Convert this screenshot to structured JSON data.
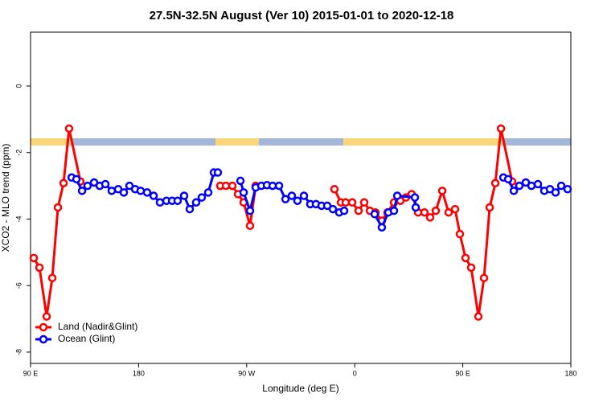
{
  "chart_data": {
    "type": "line",
    "title": "27.5N-32.5N August (Ver 10)   2015-01-01 to 2020-12-18",
    "x_label": "Longitude (deg E)",
    "y_label": "XCO2 - MLO trend (ppm)",
    "xlim": [
      90,
      540
    ],
    "ylim": [
      -8.34,
      1.62
    ],
    "xticks": [
      {
        "value": 90,
        "label": "90 E"
      },
      180,
      {
        "value": 270,
        "label": "90 W"
      },
      {
        "value": 360,
        "label": "0"
      },
      {
        "value": 450,
        "label": "90 E"
      },
      {
        "value": 540,
        "label": "180"
      }
    ],
    "yticks": [
      0,
      -2,
      -4,
      -6,
      -8
    ],
    "legend": "bottom-left",
    "series": [
      {
        "name": "Land (Nadir&Glint)",
        "color": "#ff0000",
        "x": [
          92.7,
          97.4,
          103.4,
          108.1,
          112.8,
          117.5,
          122.1,
          131.5,
          null,
          248.0,
          252.7,
          258.1,
          262.8,
          267.5,
          272.8,
          277.5,
          null,
          343.1,
          348.5,
          352.5,
          357.9,
          363.2,
          367.9,
          372.6,
          377.3,
          382.6,
          387.3,
          392.7,
          398.0,
          402.7,
          407.4,
          412.8,
          418.1,
          422.8,
          427.5,
          432.9,
          438.2,
          443.6,
          447.6,
          452.3,
          457.0,
          463.0,
          467.7,
          472.4,
          477.1,
          481.8,
          491.1
        ],
        "values": [
          -5.17,
          -5.46,
          -6.93,
          -5.77,
          -3.65,
          -2.92,
          -1.28,
          -2.87,
          null,
          -3.0,
          -3.0,
          -3.0,
          -3.25,
          -3.5,
          -4.2,
          -3.0,
          null,
          -3.1,
          -3.5,
          -3.5,
          -3.5,
          -3.75,
          -3.5,
          -3.75,
          -3.8,
          -4.05,
          -3.8,
          -3.5,
          -3.45,
          -3.35,
          -3.25,
          -3.8,
          -3.8,
          -3.95,
          -3.75,
          -3.15,
          -3.8,
          -3.7,
          -4.45,
          -5.17,
          -5.46,
          -6.93,
          -5.77,
          -3.65,
          -2.92,
          -1.28,
          -2.87
        ]
      },
      {
        "name": "Ocean (Glint)",
        "color": "#0000ff",
        "x": [
          124.2,
          128.2,
          132.9,
          137.5,
          142.9,
          147.6,
          152.3,
          157.6,
          163.0,
          167.7,
          172.4,
          177.1,
          181.7,
          187.1,
          192.5,
          197.8,
          203.2,
          207.9,
          212.5,
          217.9,
          222.6,
          227.9,
          232.6,
          238.0,
          242.7,
          246.0,
          null,
          264.8,
          267.5,
          272.8,
          277.5,
          282.2,
          286.9,
          291.6,
          297.0,
          302.3,
          307.6,
          312.3,
          317.7,
          323.0,
          327.7,
          332.4,
          337.1,
          341.8,
          347.1,
          351.2,
          null,
          376.6,
          382.6,
          388.0,
          392.7,
          395.4,
          410.1,
          410.8,
          null,
          483.8,
          487.8,
          492.5,
          497.1,
          502.5,
          507.2,
          512.6,
          517.9,
          522.6,
          527.3,
          532.0,
          537.3
        ],
        "values": [
          -2.75,
          -2.8,
          -3.15,
          -3.0,
          -2.9,
          -3.0,
          -2.95,
          -3.15,
          -3.1,
          -3.2,
          -3.0,
          -3.1,
          -3.15,
          -3.2,
          -3.3,
          -3.5,
          -3.45,
          -3.45,
          -3.45,
          -3.3,
          -3.7,
          -3.5,
          -3.35,
          -3.2,
          -2.6,
          -2.6,
          null,
          -2.85,
          -3.2,
          -3.75,
          -3.05,
          -3.0,
          -2.98,
          -3.0,
          -3.0,
          -3.4,
          -3.3,
          -3.45,
          -3.3,
          -3.55,
          -3.55,
          -3.6,
          -3.6,
          -3.7,
          -3.8,
          -3.75,
          null,
          -3.85,
          -4.25,
          -3.8,
          -3.75,
          -3.3,
          -3.35,
          -3.65,
          null,
          -2.75,
          -2.8,
          -3.15,
          -3.0,
          -2.9,
          -3.0,
          -2.95,
          -3.15,
          -3.1,
          -3.2,
          -3.0,
          -3.1
        ]
      }
    ]
  }
}
